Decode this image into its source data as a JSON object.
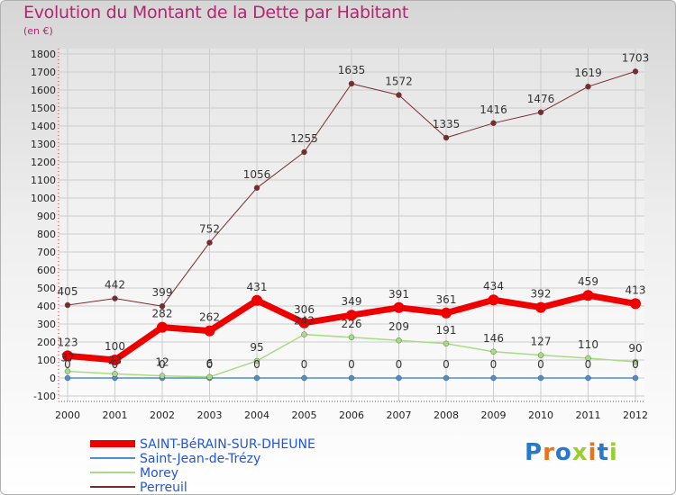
{
  "title": "Evolution du Montant de la Dette par Habitant",
  "subtitle": "(en €)",
  "logo": "Proxiti",
  "chart_data": {
    "type": "line",
    "title": "Evolution du Montant de la Dette par Habitant",
    "subtitle": "(en €)",
    "xlabel": "",
    "ylabel": "",
    "x": [
      "2000",
      "2001",
      "2002",
      "2003",
      "2004",
      "2005",
      "2006",
      "2007",
      "2008",
      "2009",
      "2010",
      "2011",
      "2012"
    ],
    "ylim": [
      -100,
      1800
    ],
    "yticks": [
      -100,
      0,
      100,
      200,
      300,
      400,
      500,
      600,
      700,
      800,
      900,
      1000,
      1100,
      1200,
      1300,
      1400,
      1500,
      1600,
      1700,
      1800
    ],
    "grid": true,
    "legend_position": "bottom-left",
    "series": [
      {
        "name": "SAINT-BéRAIN-SUR-DHEUNE",
        "color": "#ee0000",
        "values": [
          123,
          100,
          282,
          262,
          431,
          306,
          349,
          391,
          361,
          434,
          392,
          459,
          413
        ]
      },
      {
        "name": "Saint-Jean-de-Trézy",
        "color": "#4b8fd1",
        "values": [
          0,
          0,
          0,
          0,
          0,
          0,
          0,
          0,
          0,
          0,
          0,
          0,
          0
        ]
      },
      {
        "name": "Morey",
        "color": "#a8dc80",
        "values": [
          37,
          23,
          12,
          6,
          95,
          242,
          226,
          209,
          191,
          146,
          127,
          110,
          90
        ]
      },
      {
        "name": "Perreuil",
        "color": "#7a2c2c",
        "values": [
          405,
          442,
          399,
          752,
          1056,
          1255,
          1635,
          1572,
          1335,
          1416,
          1476,
          1619,
          1703
        ]
      }
    ]
  }
}
